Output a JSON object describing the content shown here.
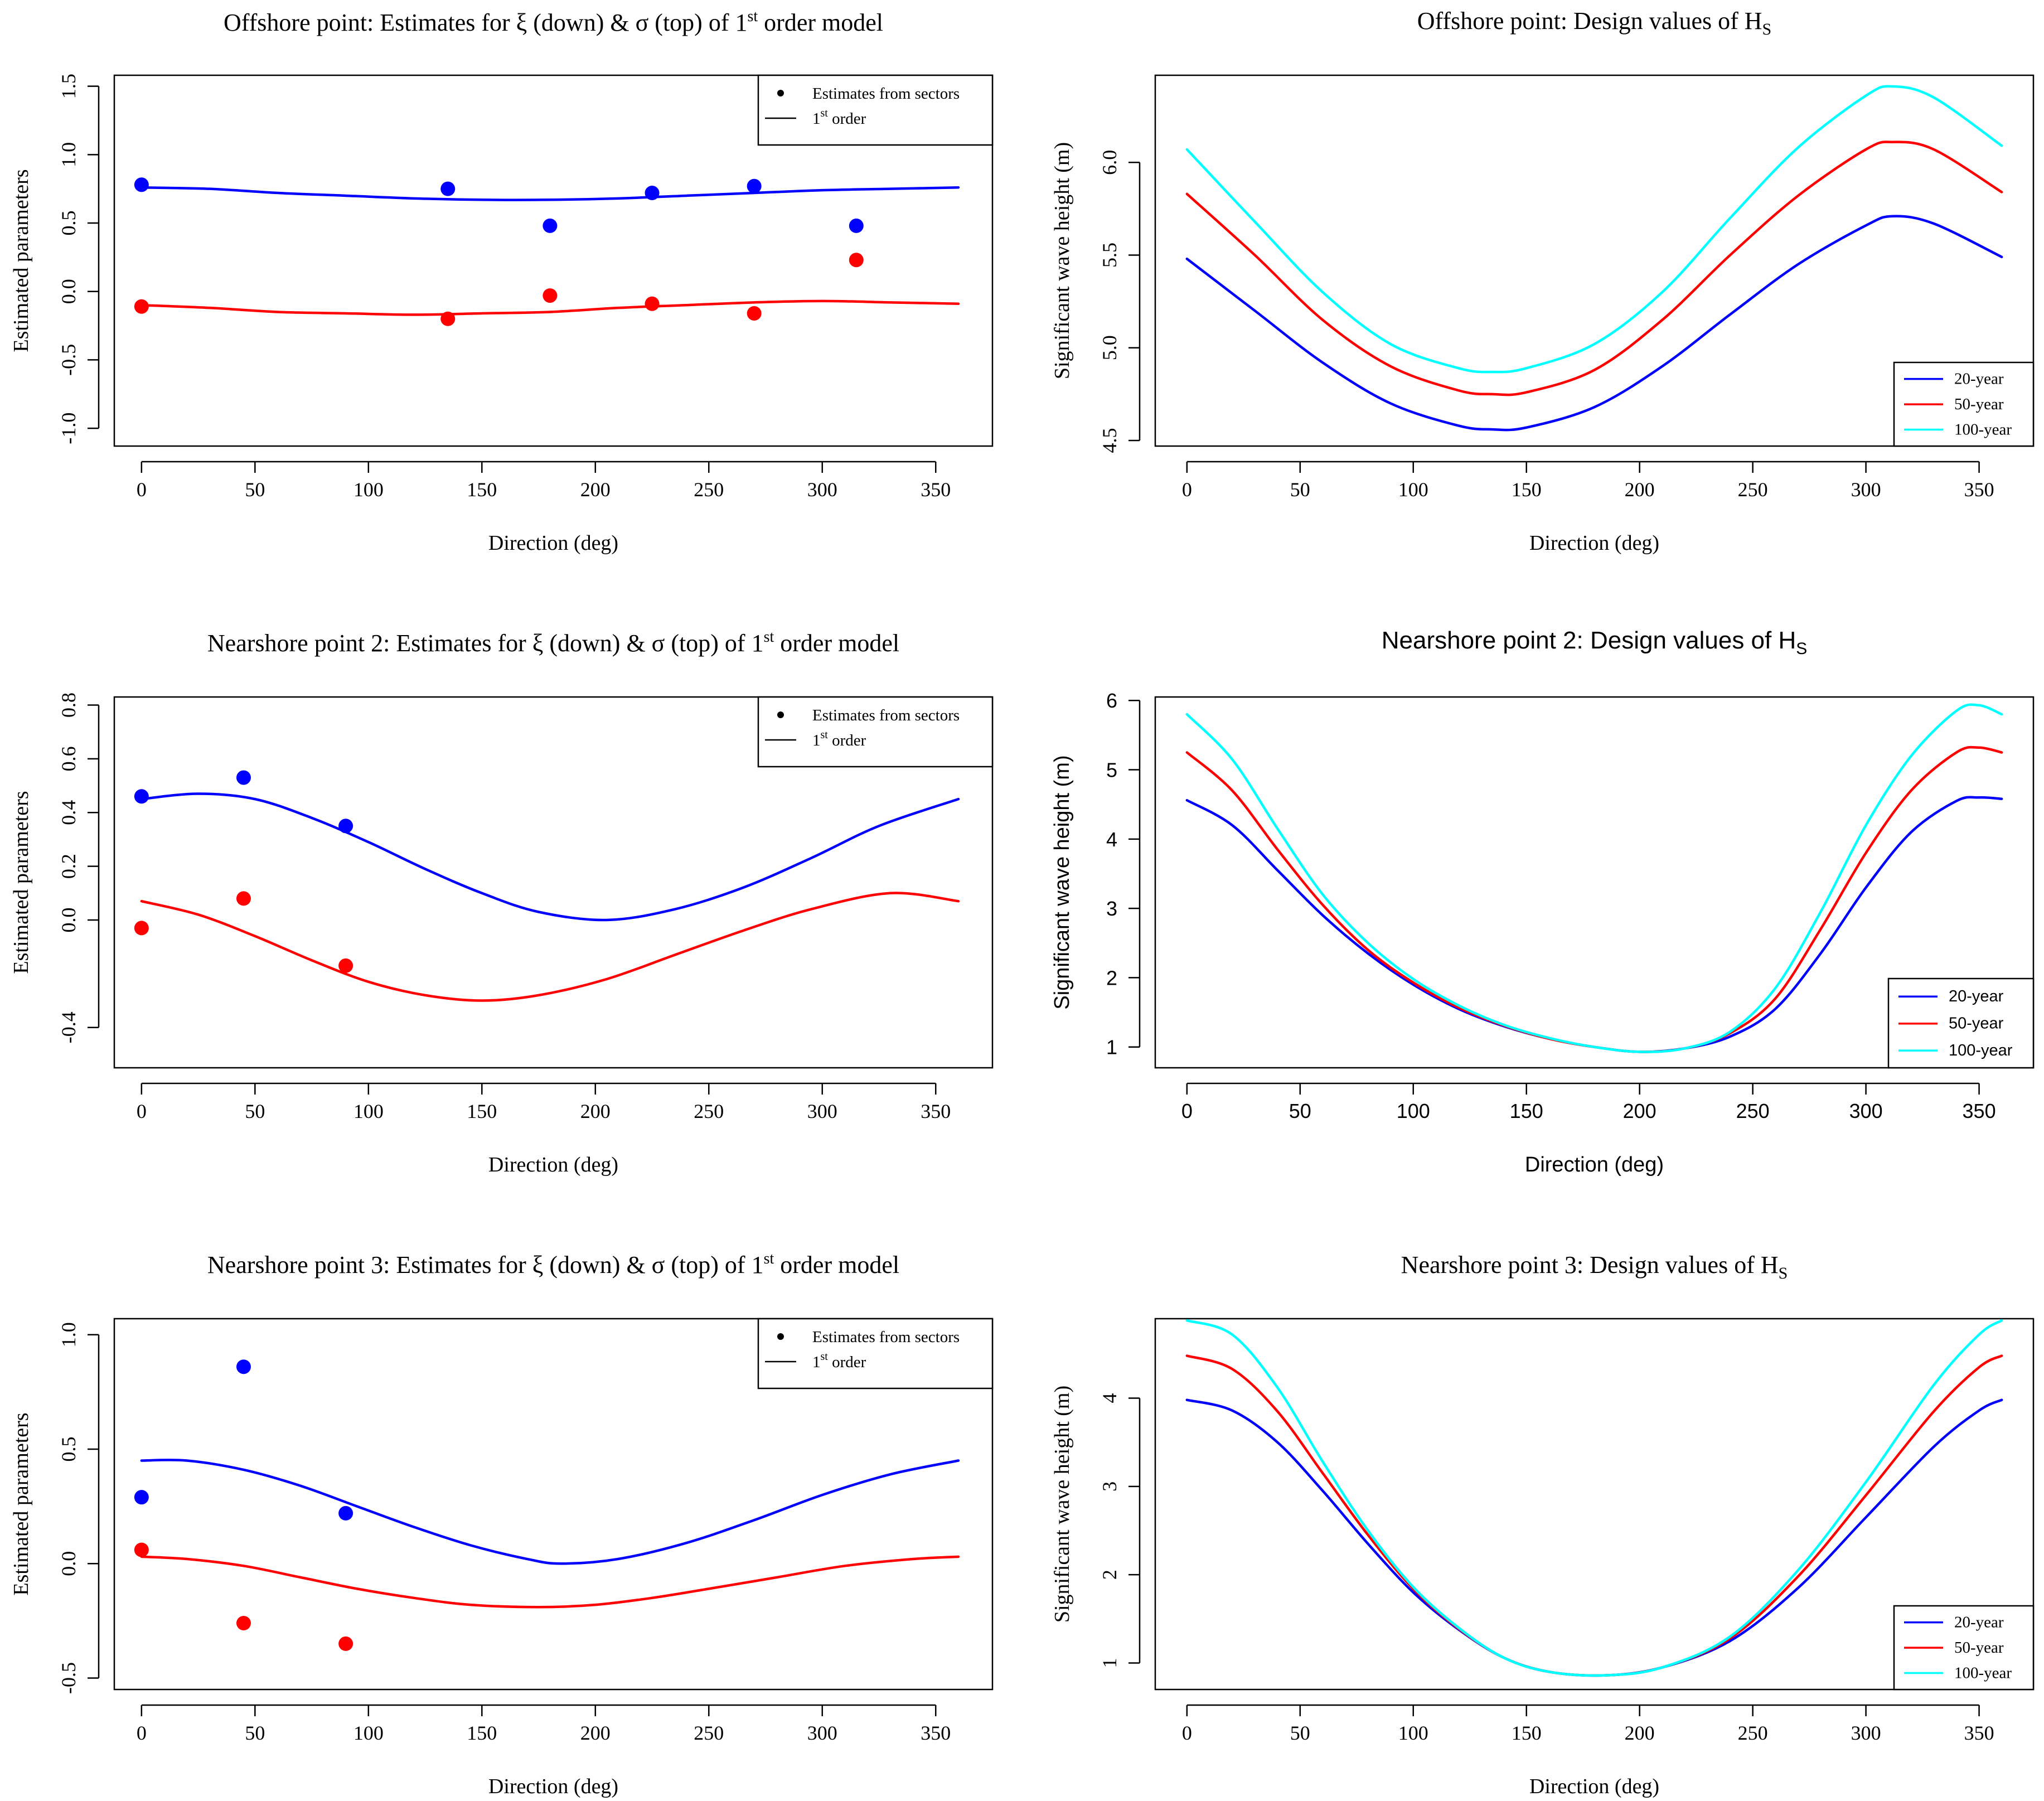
{
  "figure": {
    "colors": {
      "blue": "#0000ff",
      "red": "#ff0000",
      "cyan": "#00ffff",
      "black": "#000000"
    }
  },
  "chart_data": [
    {
      "type": "scatter",
      "id": "p1",
      "title": "Offshore point: Estimates for ξ (down) & σ (top) of 1st order model",
      "title_parts": {
        "pre": "Offshore point: Estimates for ξ (down) & σ (top) of 1",
        "sup": "st",
        "post": " order model"
      },
      "font": "serif",
      "xlabel": "Direction (deg)",
      "ylabel": "Estimated parameters",
      "xlim": [
        -12,
        375
      ],
      "ylim": [
        -1.13,
        1.58
      ],
      "xticks": [
        0,
        50,
        100,
        150,
        200,
        250,
        300,
        350
      ],
      "yticks": [
        -1.0,
        -0.5,
        0.0,
        0.5,
        1.0,
        1.5
      ],
      "ytick_labels": [
        "-1.0",
        "-0.5",
        "0.0",
        "0.5",
        "1.0",
        "1.5"
      ],
      "ytick_rotate": true,
      "legend": {
        "position": "top-right",
        "style": "points",
        "entries": [
          {
            "label": "Estimates from sectors",
            "mark": "dot"
          },
          {
            "label": "1",
            "sup": "st",
            "post": " order",
            "mark": "line"
          }
        ]
      },
      "series": [
        {
          "name": "sigma (top) estimates",
          "kind": "points",
          "color": "blue",
          "x": [
            0,
            135,
            180,
            225,
            270,
            315
          ],
          "y": [
            0.78,
            0.75,
            0.48,
            0.72,
            0.77,
            0.48
          ]
        },
        {
          "name": "xi (down) estimates",
          "kind": "points",
          "color": "red",
          "x": [
            0,
            135,
            180,
            225,
            270,
            315
          ],
          "y": [
            -0.11,
            -0.2,
            -0.03,
            -0.09,
            -0.16,
            0.23
          ]
        },
        {
          "name": "sigma 1st order",
          "kind": "line",
          "color": "blue",
          "x": [
            0,
            30,
            60,
            90,
            120,
            150,
            180,
            210,
            240,
            270,
            300,
            330,
            360
          ],
          "y": [
            0.76,
            0.75,
            0.72,
            0.7,
            0.68,
            0.67,
            0.67,
            0.68,
            0.7,
            0.72,
            0.74,
            0.75,
            0.76
          ]
        },
        {
          "name": "xi 1st order",
          "kind": "line",
          "color": "red",
          "x": [
            0,
            30,
            60,
            90,
            120,
            150,
            180,
            210,
            240,
            270,
            300,
            330,
            360
          ],
          "y": [
            -0.1,
            -0.12,
            -0.15,
            -0.16,
            -0.17,
            -0.16,
            -0.15,
            -0.12,
            -0.1,
            -0.08,
            -0.07,
            -0.08,
            -0.09
          ]
        }
      ]
    },
    {
      "type": "line",
      "id": "p2",
      "title": "Offshore point: Design values of HS",
      "title_parts": {
        "pre": "Offshore point: Design values of H",
        "sub": "S",
        "post": ""
      },
      "font": "serif",
      "xlabel": "Direction (deg)",
      "ylabel": "Significant wave height (m)",
      "xlim": [
        -14,
        374
      ],
      "ylim": [
        4.47,
        6.47
      ],
      "xticks": [
        0,
        50,
        100,
        150,
        200,
        250,
        300,
        350
      ],
      "yticks": [
        4.5,
        5.0,
        5.5,
        6.0
      ],
      "ytick_labels": [
        "4.5",
        "5.0",
        "5.5",
        "6.0"
      ],
      "ytick_rotate": true,
      "legend": {
        "position": "bottom-right",
        "style": "lines",
        "entries": [
          {
            "label": "20-year",
            "color": "blue"
          },
          {
            "label": "50-year",
            "color": "red"
          },
          {
            "label": "100-year",
            "color": "cyan"
          }
        ]
      },
      "series": [
        {
          "name": "20-year",
          "color": "blue",
          "x": [
            0,
            30,
            60,
            90,
            120,
            135,
            150,
            180,
            210,
            240,
            270,
            300,
            312,
            330,
            360
          ],
          "y": [
            5.48,
            5.2,
            4.92,
            4.7,
            4.58,
            4.56,
            4.57,
            4.68,
            4.9,
            5.18,
            5.45,
            5.66,
            5.71,
            5.67,
            5.49
          ]
        },
        {
          "name": "50-year",
          "color": "red",
          "x": [
            0,
            30,
            60,
            90,
            120,
            135,
            150,
            180,
            210,
            240,
            270,
            300,
            312,
            330,
            360
          ],
          "y": [
            5.83,
            5.5,
            5.15,
            4.9,
            4.77,
            4.75,
            4.76,
            4.88,
            5.15,
            5.5,
            5.82,
            6.07,
            6.11,
            6.07,
            5.84
          ]
        },
        {
          "name": "100-year",
          "color": "cyan",
          "x": [
            0,
            30,
            60,
            90,
            120,
            135,
            150,
            180,
            210,
            240,
            270,
            300,
            312,
            330,
            360
          ],
          "y": [
            6.07,
            5.68,
            5.3,
            5.02,
            4.89,
            4.87,
            4.89,
            5.02,
            5.3,
            5.7,
            6.08,
            6.36,
            6.41,
            6.35,
            6.09
          ]
        }
      ]
    },
    {
      "type": "scatter",
      "id": "p3",
      "title": "Nearshore point 2: Estimates for ξ (down) & σ (top) of 1st order model",
      "title_parts": {
        "pre": "Nearshore point 2: Estimates for ξ (down) & σ (top) of 1",
        "sup": "st",
        "post": " order model"
      },
      "font": "serif",
      "xlabel": "Direction (deg)",
      "ylabel": "Estimated parameters",
      "xlim": [
        -12,
        375
      ],
      "ylim": [
        -0.55,
        0.83
      ],
      "xticks": [
        0,
        50,
        100,
        150,
        200,
        250,
        300,
        350
      ],
      "yticks": [
        -0.4,
        0.0,
        0.2,
        0.4,
        0.6,
        0.8
      ],
      "ytick_labels": [
        "-0.4",
        "0.0",
        "0.2",
        "0.4",
        "0.6",
        "0.8"
      ],
      "ytick_rotate": true,
      "legend": {
        "position": "top-right",
        "style": "points",
        "entries": [
          {
            "label": "Estimates from sectors",
            "mark": "dot"
          },
          {
            "label": "1",
            "sup": "st",
            "post": " order",
            "mark": "line"
          }
        ]
      },
      "series": [
        {
          "name": "sigma (top) estimates",
          "kind": "points",
          "color": "blue",
          "x": [
            0,
            45,
            90
          ],
          "y": [
            0.46,
            0.53,
            0.35
          ]
        },
        {
          "name": "xi (down) estimates",
          "kind": "points",
          "color": "red",
          "x": [
            0,
            45,
            90
          ],
          "y": [
            -0.03,
            0.08,
            -0.17
          ]
        },
        {
          "name": "sigma 1st order",
          "kind": "line",
          "color": "blue",
          "x": [
            0,
            25,
            50,
            75,
            100,
            125,
            150,
            175,
            205,
            235,
            265,
            295,
            325,
            360
          ],
          "y": [
            0.45,
            0.47,
            0.45,
            0.38,
            0.29,
            0.19,
            0.1,
            0.03,
            0.0,
            0.04,
            0.12,
            0.23,
            0.35,
            0.45
          ]
        },
        {
          "name": "xi 1st order",
          "kind": "line",
          "color": "red",
          "x": [
            0,
            25,
            50,
            75,
            100,
            125,
            150,
            175,
            205,
            235,
            265,
            295,
            330,
            360
          ],
          "y": [
            0.07,
            0.02,
            -0.06,
            -0.15,
            -0.23,
            -0.28,
            -0.3,
            -0.28,
            -0.22,
            -0.13,
            -0.04,
            0.04,
            0.1,
            0.07
          ]
        }
      ]
    },
    {
      "type": "line",
      "id": "p4",
      "title": "Nearshore point 2: Design values of HS",
      "title_parts": {
        "pre": "Nearshore point 2: Design values of H",
        "sub": "S",
        "post": ""
      },
      "font": "sans",
      "xlabel": "Direction (deg)",
      "ylabel": "Significant wave height (m)",
      "xlim": [
        -14,
        374
      ],
      "ylim": [
        0.7,
        6.05
      ],
      "xticks": [
        0,
        50,
        100,
        150,
        200,
        250,
        300,
        350
      ],
      "yticks": [
        1,
        2,
        3,
        4,
        5,
        6
      ],
      "ytick_labels": [
        "1",
        "2",
        "3",
        "4",
        "5",
        "6"
      ],
      "ytick_rotate": false,
      "legend": {
        "position": "bottom-right",
        "style": "lines",
        "entries": [
          {
            "label": "20-year",
            "color": "blue"
          },
          {
            "label": "50-year",
            "color": "red"
          },
          {
            "label": "100-year",
            "color": "cyan"
          }
        ]
      },
      "series": [
        {
          "name": "20-year",
          "color": "blue",
          "x": [
            0,
            20,
            40,
            60,
            80,
            100,
            120,
            140,
            160,
            180,
            200,
            220,
            240,
            260,
            280,
            300,
            320,
            340,
            350,
            360
          ],
          "y": [
            4.56,
            4.2,
            3.55,
            2.9,
            2.35,
            1.9,
            1.55,
            1.3,
            1.12,
            1.0,
            0.93,
            0.98,
            1.15,
            1.55,
            2.35,
            3.3,
            4.1,
            4.55,
            4.6,
            4.58
          ]
        },
        {
          "name": "50-year",
          "color": "red",
          "x": [
            0,
            20,
            40,
            60,
            80,
            100,
            120,
            140,
            160,
            180,
            200,
            220,
            240,
            260,
            280,
            300,
            320,
            340,
            350,
            360
          ],
          "y": [
            5.25,
            4.7,
            3.85,
            3.05,
            2.4,
            1.93,
            1.57,
            1.31,
            1.12,
            1.0,
            0.93,
            0.98,
            1.2,
            1.7,
            2.7,
            3.8,
            4.7,
            5.25,
            5.32,
            5.25
          ]
        },
        {
          "name": "100-year",
          "color": "cyan",
          "x": [
            0,
            20,
            40,
            60,
            80,
            100,
            120,
            140,
            160,
            180,
            200,
            220,
            240,
            260,
            280,
            300,
            320,
            340,
            350,
            360
          ],
          "y": [
            5.8,
            5.15,
            4.15,
            3.2,
            2.5,
            1.98,
            1.6,
            1.32,
            1.13,
            1.0,
            0.93,
            0.98,
            1.22,
            1.85,
            2.95,
            4.2,
            5.2,
            5.85,
            5.93,
            5.8
          ]
        }
      ]
    },
    {
      "type": "scatter",
      "id": "p5",
      "title": "Nearshore point 3: Estimates for ξ (down) & σ (top) of 1st order model",
      "title_parts": {
        "pre": "Nearshore point 3: Estimates for ξ (down) & σ (top) of 1",
        "sup": "st",
        "post": " order model"
      },
      "font": "serif",
      "xlabel": "Direction (deg)",
      "ylabel": "Estimated parameters",
      "xlim": [
        -12,
        375
      ],
      "ylim": [
        -0.55,
        1.07
      ],
      "xticks": [
        0,
        50,
        100,
        150,
        200,
        250,
        300,
        350
      ],
      "yticks": [
        -0.5,
        0.0,
        0.5,
        1.0
      ],
      "ytick_labels": [
        "-0.5",
        "0.0",
        "0.5",
        "1.0"
      ],
      "ytick_rotate": true,
      "legend": {
        "position": "top-right",
        "style": "points",
        "entries": [
          {
            "label": "Estimates from sectors",
            "mark": "dot"
          },
          {
            "label": "1",
            "sup": "st",
            "post": " order",
            "mark": "line"
          }
        ]
      },
      "series": [
        {
          "name": "sigma (top) estimates",
          "kind": "points",
          "color": "blue",
          "x": [
            0,
            45,
            90
          ],
          "y": [
            0.29,
            0.86,
            0.22
          ]
        },
        {
          "name": "xi (down) estimates",
          "kind": "points",
          "color": "red",
          "x": [
            0,
            45,
            90
          ],
          "y": [
            0.06,
            -0.26,
            -0.35
          ]
        },
        {
          "name": "sigma 1st order",
          "kind": "line",
          "color": "blue",
          "x": [
            0,
            20,
            45,
            70,
            95,
            120,
            145,
            170,
            185,
            210,
            240,
            270,
            300,
            330,
            360
          ],
          "y": [
            0.45,
            0.45,
            0.41,
            0.34,
            0.25,
            0.16,
            0.08,
            0.02,
            0.0,
            0.02,
            0.09,
            0.19,
            0.3,
            0.39,
            0.45
          ]
        },
        {
          "name": "xi 1st order",
          "kind": "line",
          "color": "red",
          "x": [
            0,
            20,
            45,
            70,
            95,
            120,
            145,
            175,
            200,
            225,
            250,
            280,
            310,
            340,
            360
          ],
          "y": [
            0.03,
            0.02,
            -0.01,
            -0.06,
            -0.11,
            -0.15,
            -0.18,
            -0.19,
            -0.18,
            -0.15,
            -0.11,
            -0.06,
            -0.01,
            0.02,
            0.03
          ]
        }
      ]
    },
    {
      "type": "line",
      "id": "p6",
      "title": "Nearshore point 3: Design values of HS",
      "title_parts": {
        "pre": "Nearshore point 3: Design values of H",
        "sub": "S",
        "post": ""
      },
      "font": "serif",
      "xlabel": "Direction (deg)",
      "ylabel": "Significant wave height (m)",
      "xlim": [
        -14,
        374
      ],
      "ylim": [
        0.7,
        4.9
      ],
      "xticks": [
        0,
        50,
        100,
        150,
        200,
        250,
        300,
        350
      ],
      "yticks": [
        1,
        2,
        3,
        4
      ],
      "ytick_labels": [
        "1",
        "2",
        "3",
        "4"
      ],
      "ytick_rotate": true,
      "legend": {
        "position": "bottom-right",
        "style": "lines",
        "entries": [
          {
            "label": "20-year",
            "color": "blue"
          },
          {
            "label": "50-year",
            "color": "red"
          },
          {
            "label": "100-year",
            "color": "cyan"
          }
        ]
      },
      "series": [
        {
          "name": "20-year",
          "color": "blue",
          "x": [
            0,
            20,
            40,
            60,
            80,
            100,
            120,
            140,
            160,
            185,
            210,
            240,
            270,
            300,
            330,
            350,
            360
          ],
          "y": [
            3.98,
            3.86,
            3.5,
            2.95,
            2.35,
            1.8,
            1.38,
            1.06,
            0.9,
            0.86,
            0.95,
            1.25,
            1.85,
            2.65,
            3.45,
            3.86,
            3.98
          ]
        },
        {
          "name": "50-year",
          "color": "red",
          "x": [
            0,
            20,
            40,
            60,
            80,
            100,
            120,
            140,
            160,
            185,
            210,
            240,
            270,
            300,
            330,
            350,
            360
          ],
          "y": [
            4.48,
            4.33,
            3.85,
            3.15,
            2.45,
            1.84,
            1.39,
            1.06,
            0.9,
            0.86,
            0.95,
            1.28,
            1.98,
            2.9,
            3.85,
            4.35,
            4.48
          ]
        },
        {
          "name": "100-year",
          "color": "cyan",
          "x": [
            0,
            20,
            40,
            60,
            80,
            100,
            120,
            140,
            160,
            185,
            210,
            240,
            270,
            300,
            330,
            350,
            360
          ],
          "y": [
            4.88,
            4.72,
            4.12,
            3.28,
            2.5,
            1.86,
            1.4,
            1.06,
            0.9,
            0.86,
            0.95,
            1.3,
            2.05,
            3.05,
            4.15,
            4.72,
            4.88
          ]
        }
      ]
    }
  ]
}
